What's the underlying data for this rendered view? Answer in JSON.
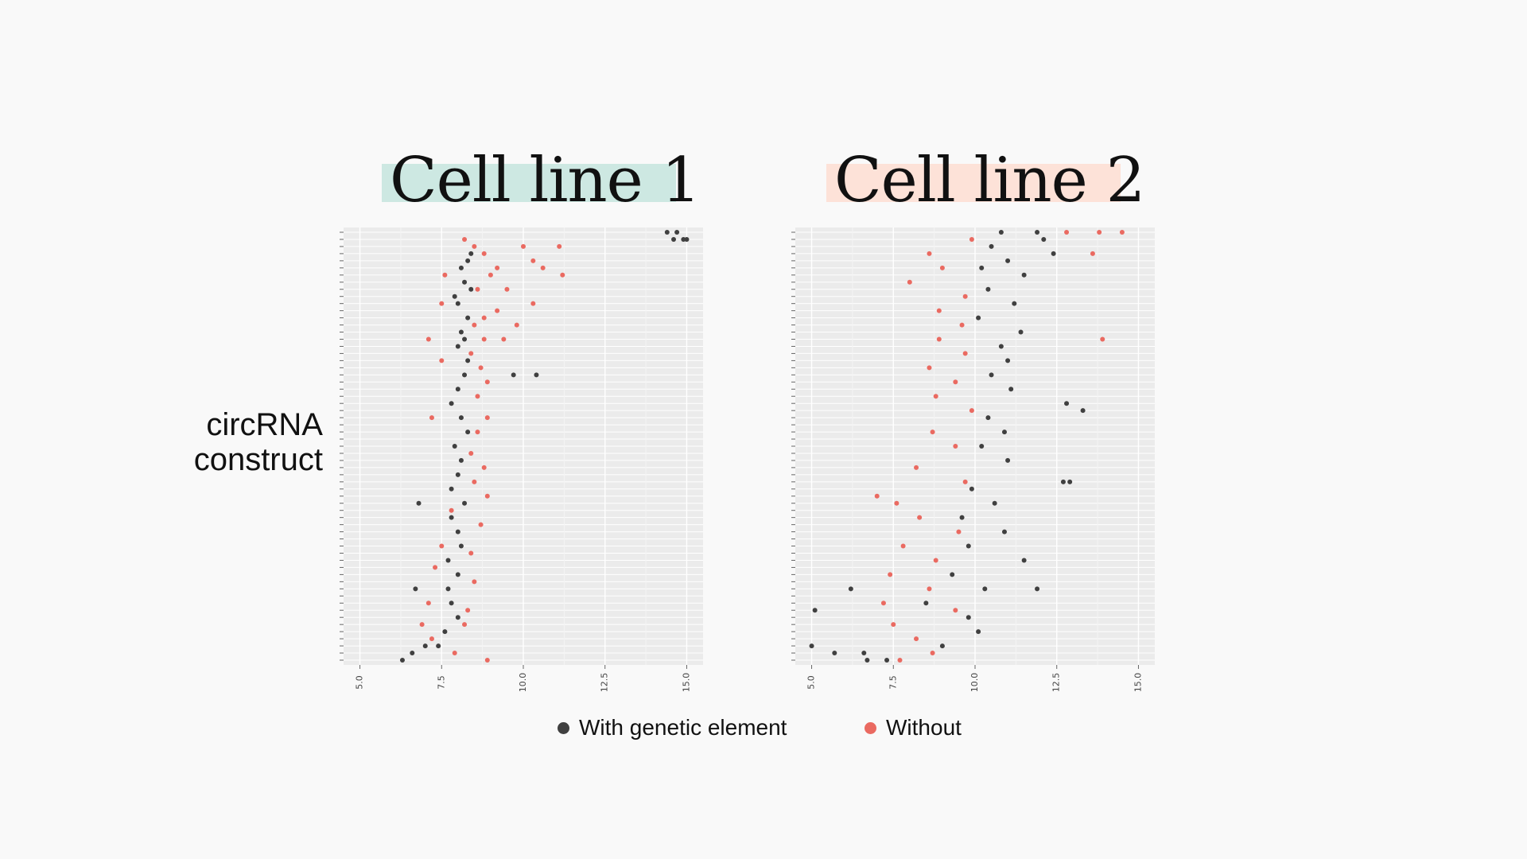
{
  "colors": {
    "with": "#404040",
    "without": "#ea6a61",
    "panel_bg": "#ebebeb",
    "grid_major": "#ffffff",
    "grid_minor": "#f4f4f4"
  },
  "y_axis_label": {
    "line1": "circRNA",
    "line2": "construct"
  },
  "legend": {
    "with_label": "With genetic element",
    "without_label": "Without"
  },
  "chart_data": [
    {
      "type": "scatter",
      "title": "Cell line 1",
      "xlim": [
        4.5,
        15.5
      ],
      "x_ticks": [
        "5.0",
        "7.5",
        "10.0",
        "12.5",
        "15.0"
      ],
      "y_categories_count": 60,
      "grid": true,
      "series": [
        {
          "name": "With genetic element",
          "color_key": "with",
          "points": [
            [
              14.4,
              0
            ],
            [
              14.7,
              0
            ],
            [
              14.6,
              1
            ],
            [
              14.9,
              1
            ],
            [
              15.0,
              1
            ],
            [
              8.4,
              3
            ],
            [
              8.3,
              4
            ],
            [
              8.1,
              5
            ],
            [
              8.2,
              7
            ],
            [
              8.4,
              8
            ],
            [
              7.9,
              9
            ],
            [
              8.0,
              10
            ],
            [
              8.3,
              12
            ],
            [
              8.1,
              14
            ],
            [
              8.2,
              15
            ],
            [
              8.0,
              16
            ],
            [
              8.3,
              18
            ],
            [
              8.2,
              20
            ],
            [
              9.7,
              20
            ],
            [
              10.4,
              20
            ],
            [
              8.0,
              22
            ],
            [
              7.8,
              24
            ],
            [
              8.1,
              26
            ],
            [
              8.3,
              28
            ],
            [
              7.9,
              30
            ],
            [
              8.1,
              32
            ],
            [
              8.0,
              34
            ],
            [
              7.8,
              36
            ],
            [
              8.2,
              38
            ],
            [
              6.8,
              38
            ],
            [
              7.8,
              40
            ],
            [
              8.0,
              42
            ],
            [
              8.1,
              44
            ],
            [
              7.7,
              46
            ],
            [
              8.0,
              48
            ],
            [
              7.7,
              50
            ],
            [
              6.7,
              50
            ],
            [
              7.8,
              52
            ],
            [
              8.0,
              54
            ],
            [
              7.6,
              56
            ],
            [
              7.4,
              58
            ],
            [
              7.0,
              58
            ],
            [
              6.3,
              60
            ],
            [
              6.6,
              59
            ]
          ]
        },
        {
          "name": "Without",
          "color_key": "without",
          "points": [
            [
              8.2,
              1
            ],
            [
              8.5,
              2
            ],
            [
              10.0,
              2
            ],
            [
              8.8,
              3
            ],
            [
              10.3,
              4
            ],
            [
              11.1,
              2
            ],
            [
              9.2,
              5
            ],
            [
              10.6,
              5
            ],
            [
              7.6,
              6
            ],
            [
              9.0,
              6
            ],
            [
              11.2,
              6
            ],
            [
              8.6,
              8
            ],
            [
              9.5,
              8
            ],
            [
              7.5,
              10
            ],
            [
              9.2,
              11
            ],
            [
              10.3,
              10
            ],
            [
              8.8,
              12
            ],
            [
              8.5,
              13
            ],
            [
              9.8,
              13
            ],
            [
              7.1,
              15
            ],
            [
              8.8,
              15
            ],
            [
              9.4,
              15
            ],
            [
              8.4,
              17
            ],
            [
              7.5,
              18
            ],
            [
              8.7,
              19
            ],
            [
              8.9,
              21
            ],
            [
              8.6,
              23
            ],
            [
              7.2,
              26
            ],
            [
              8.9,
              26
            ],
            [
              8.6,
              28
            ],
            [
              8.4,
              31
            ],
            [
              8.8,
              33
            ],
            [
              8.5,
              35
            ],
            [
              8.9,
              37
            ],
            [
              7.8,
              39
            ],
            [
              8.7,
              41
            ],
            [
              7.5,
              44
            ],
            [
              8.4,
              45
            ],
            [
              7.3,
              47
            ],
            [
              8.5,
              49
            ],
            [
              7.1,
              52
            ],
            [
              8.3,
              53
            ],
            [
              6.9,
              55
            ],
            [
              8.2,
              55
            ],
            [
              7.2,
              57
            ],
            [
              7.9,
              59
            ],
            [
              8.9,
              60
            ]
          ]
        }
      ]
    },
    {
      "type": "scatter",
      "title": "Cell line 2",
      "xlim": [
        4.5,
        15.5
      ],
      "x_ticks": [
        "5.0",
        "7.5",
        "10.0",
        "12.5",
        "15.0"
      ],
      "y_categories_count": 60,
      "grid": true,
      "series": [
        {
          "name": "With genetic element",
          "color_key": "with",
          "points": [
            [
              10.8,
              0
            ],
            [
              11.9,
              0
            ],
            [
              12.1,
              1
            ],
            [
              10.5,
              2
            ],
            [
              12.4,
              3
            ],
            [
              11.0,
              4
            ],
            [
              10.2,
              5
            ],
            [
              11.5,
              6
            ],
            [
              10.4,
              8
            ],
            [
              11.2,
              10
            ],
            [
              10.1,
              12
            ],
            [
              11.4,
              14
            ],
            [
              10.8,
              16
            ],
            [
              11.0,
              18
            ],
            [
              10.5,
              20
            ],
            [
              11.1,
              22
            ],
            [
              12.8,
              24
            ],
            [
              13.3,
              25
            ],
            [
              10.4,
              26
            ],
            [
              10.9,
              28
            ],
            [
              10.2,
              30
            ],
            [
              11.0,
              32
            ],
            [
              12.7,
              35
            ],
            [
              12.9,
              35
            ],
            [
              9.9,
              36
            ],
            [
              10.6,
              38
            ],
            [
              9.6,
              40
            ],
            [
              10.9,
              42
            ],
            [
              9.8,
              44
            ],
            [
              11.5,
              46
            ],
            [
              9.3,
              48
            ],
            [
              10.3,
              50
            ],
            [
              6.2,
              50
            ],
            [
              11.9,
              50
            ],
            [
              8.5,
              52
            ],
            [
              5.1,
              53
            ],
            [
              9.8,
              54
            ],
            [
              10.1,
              56
            ],
            [
              5.0,
              58
            ],
            [
              5.7,
              59
            ],
            [
              6.6,
              59
            ],
            [
              6.7,
              60
            ],
            [
              7.3,
              60
            ],
            [
              9.0,
              58
            ]
          ]
        },
        {
          "name": "Without",
          "color_key": "without",
          "points": [
            [
              12.8,
              0
            ],
            [
              13.8,
              0
            ],
            [
              14.5,
              0
            ],
            [
              9.9,
              1
            ],
            [
              13.6,
              3
            ],
            [
              8.6,
              3
            ],
            [
              9.0,
              5
            ],
            [
              8.0,
              7
            ],
            [
              9.7,
              9
            ],
            [
              8.9,
              11
            ],
            [
              9.6,
              13
            ],
            [
              8.9,
              15
            ],
            [
              13.9,
              15
            ],
            [
              9.7,
              17
            ],
            [
              8.6,
              19
            ],
            [
              9.4,
              21
            ],
            [
              8.8,
              23
            ],
            [
              9.9,
              25
            ],
            [
              8.7,
              28
            ],
            [
              9.4,
              30
            ],
            [
              8.2,
              33
            ],
            [
              9.7,
              35
            ],
            [
              7.0,
              37
            ],
            [
              7.6,
              38
            ],
            [
              8.3,
              40
            ],
            [
              9.5,
              42
            ],
            [
              7.8,
              44
            ],
            [
              8.8,
              46
            ],
            [
              7.4,
              48
            ],
            [
              8.6,
              50
            ],
            [
              7.2,
              52
            ],
            [
              9.4,
              53
            ],
            [
              7.5,
              55
            ],
            [
              8.2,
              57
            ],
            [
              7.7,
              60
            ],
            [
              8.7,
              59
            ]
          ]
        }
      ]
    }
  ]
}
